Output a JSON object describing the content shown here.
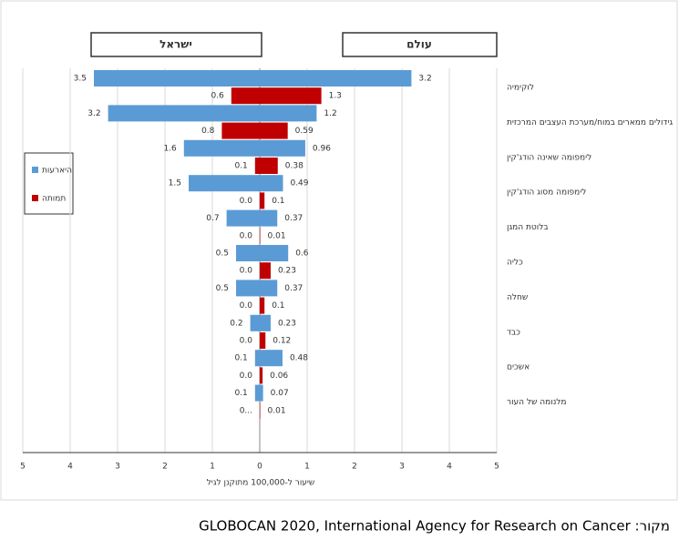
{
  "chart_data": {
    "type": "butterfly-bar",
    "panel_titles": [
      "ישראל",
      "עולם"
    ],
    "categories": [
      "לוקימיה",
      "גידולים ממארים במוח/מערכת העצבים המרכזית",
      "לימפומה שאינה הודג'קין",
      "לימפומה מסוג הודג'קין",
      "בלוטת המגן",
      "כליה",
      "שחלה",
      "כבד",
      "אשכים",
      "מלנומה של העור"
    ],
    "series": [
      {
        "name": "היארעות",
        "color": "#5b9bd5",
        "israel_values": [
          3.5,
          3.2,
          1.6,
          1.5,
          0.7,
          0.5,
          0.5,
          0.2,
          0.1,
          0.1
        ],
        "world_values": [
          3.2,
          1.2,
          0.96,
          0.49,
          0.37,
          0.6,
          0.37,
          0.23,
          0.48,
          0.07
        ]
      },
      {
        "name": "תמותה",
        "color": "#c00000",
        "israel_values": [
          0.6,
          0.8,
          0.1,
          0,
          0,
          0,
          0,
          0,
          0,
          0
        ],
        "israel_value_labels": [
          "0.6",
          "0.8",
          "0.1",
          "0.0",
          "0.0",
          "0.0",
          "0.0",
          "0.0",
          "0.0",
          "0..."
        ],
        "world_values": [
          1.3,
          0.59,
          0.38,
          0.1,
          0.01,
          0.23,
          0.1,
          0.12,
          0.06,
          0.01
        ]
      }
    ],
    "x_axis_label": "שיעור ל-100,000 מתוקנן לגיל",
    "xlim": [
      -5,
      5
    ],
    "xticks": [
      {
        "value": -5,
        "label": "5"
      },
      {
        "value": -4,
        "label": "4"
      },
      {
        "value": -3,
        "label": "3"
      },
      {
        "value": -2,
        "label": "2"
      },
      {
        "value": -1,
        "label": "1"
      },
      0,
      1,
      2,
      3,
      4,
      5
    ],
    "grid": true,
    "source": "מקור: GLOBOCAN 2020, International Agency for Research on Cancer"
  }
}
